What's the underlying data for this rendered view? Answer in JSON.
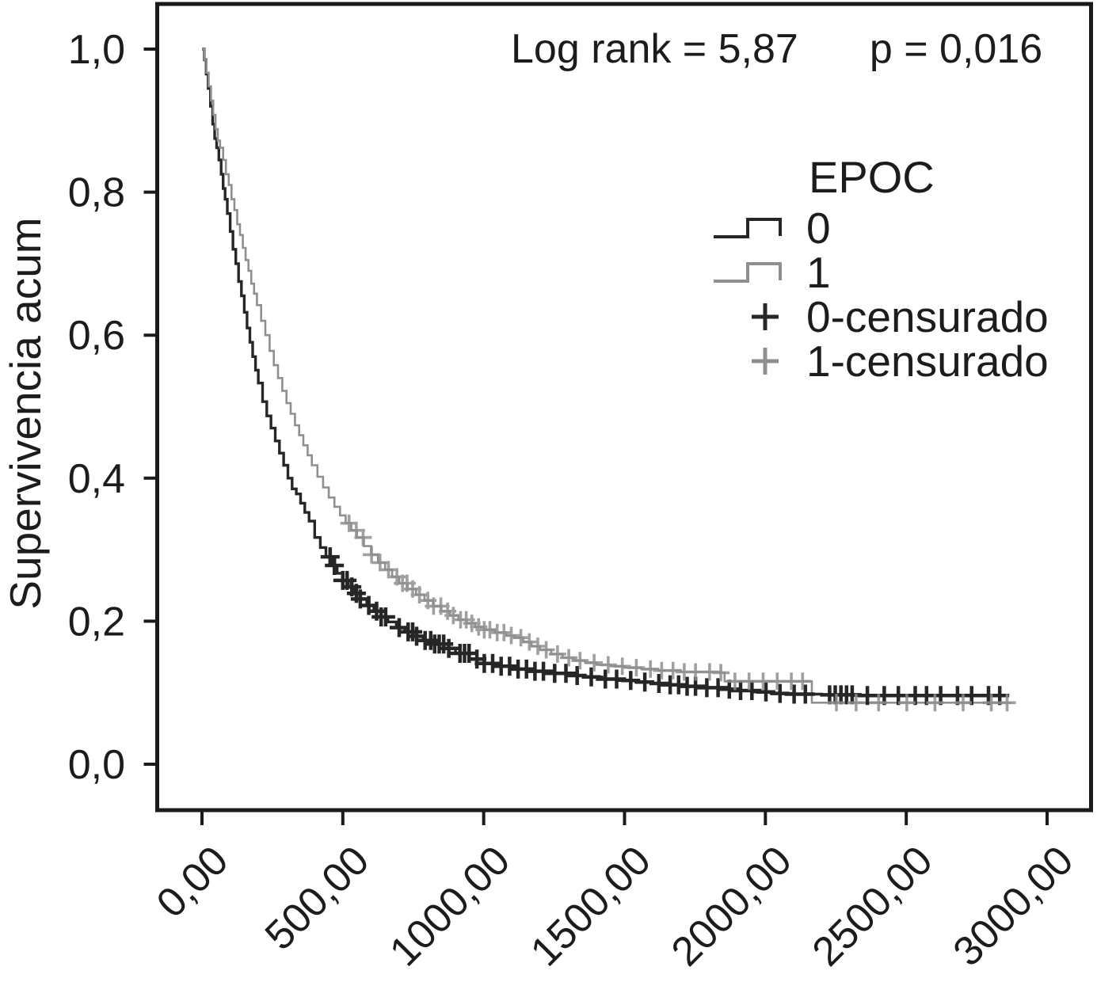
{
  "annotation": {
    "log_rank": "Log rank = 5,87",
    "p_value": "p = 0,016"
  },
  "axes": {
    "y_label": "Supervivencia acum",
    "y_ticks": [
      "0,0",
      "0,2",
      "0,4",
      "0,6",
      "0,8",
      "1,0"
    ],
    "x_ticks": [
      "0,00",
      "500,00",
      "1000,00",
      "1500,00",
      "2000,00",
      "2500,00",
      "3000,00"
    ]
  },
  "legend": {
    "title": "EPOC",
    "items": [
      {
        "label": "0",
        "type": "step-line",
        "color": "#262626"
      },
      {
        "label": "1",
        "type": "step-line",
        "color": "#8f8f8f"
      },
      {
        "label": "0-censurado",
        "type": "plus",
        "color": "#262626"
      },
      {
        "label": "1-censurado",
        "type": "plus",
        "color": "#8f8f8f"
      }
    ]
  },
  "colors": {
    "series0": "#262626",
    "series1": "#8f8f8f",
    "axis": "#1a1a1a",
    "background": "#ffffff",
    "text": "#1c1c1c"
  },
  "chart_data": {
    "type": "line",
    "subtype": "kaplan-meier-step",
    "title": "Log rank = 5,87  p = 0,016",
    "xlabel": "",
    "ylabel": "Supervivencia acum",
    "xlim": [
      0,
      3150
    ],
    "ylim": [
      0.0,
      1.05
    ],
    "x_tick_values": [
      0,
      500,
      1000,
      1500,
      2000,
      2500,
      3000
    ],
    "y_tick_values": [
      0.0,
      0.2,
      0.4,
      0.6,
      0.8,
      1.0
    ],
    "grid": false,
    "legend_position": "upper right",
    "series": [
      {
        "name": "0",
        "label": "EPOC 0",
        "color": "#262626",
        "points": [
          [
            0,
            1.0
          ],
          [
            8,
            0.985
          ],
          [
            15,
            0.965
          ],
          [
            22,
            0.945
          ],
          [
            30,
            0.92
          ],
          [
            38,
            0.895
          ],
          [
            45,
            0.875
          ],
          [
            52,
            0.862
          ],
          [
            60,
            0.845
          ],
          [
            68,
            0.825
          ],
          [
            75,
            0.805
          ],
          [
            82,
            0.79
          ],
          [
            90,
            0.77
          ],
          [
            100,
            0.745
          ],
          [
            110,
            0.72
          ],
          [
            120,
            0.7
          ],
          [
            130,
            0.675
          ],
          [
            140,
            0.655
          ],
          [
            150,
            0.632
          ],
          [
            160,
            0.61
          ],
          [
            170,
            0.59
          ],
          [
            180,
            0.57
          ],
          [
            190,
            0.551
          ],
          [
            200,
            0.533
          ],
          [
            215,
            0.507
          ],
          [
            230,
            0.487
          ],
          [
            245,
            0.47
          ],
          [
            260,
            0.452
          ],
          [
            275,
            0.435
          ],
          [
            290,
            0.418
          ],
          [
            305,
            0.4
          ],
          [
            320,
            0.385
          ],
          [
            335,
            0.378
          ],
          [
            350,
            0.365
          ],
          [
            365,
            0.352
          ],
          [
            380,
            0.34
          ],
          [
            400,
            0.317
          ],
          [
            420,
            0.303
          ],
          [
            440,
            0.29
          ],
          [
            460,
            0.278
          ],
          [
            480,
            0.267
          ],
          [
            500,
            0.257
          ],
          [
            520,
            0.248
          ],
          [
            540,
            0.239
          ],
          [
            560,
            0.231
          ],
          [
            585,
            0.222
          ],
          [
            610,
            0.214
          ],
          [
            635,
            0.206
          ],
          [
            660,
            0.199
          ],
          [
            690,
            0.191
          ],
          [
            720,
            0.185
          ],
          [
            750,
            0.179
          ],
          [
            785,
            0.173
          ],
          [
            820,
            0.168
          ],
          [
            860,
            0.162
          ],
          [
            900,
            0.155
          ],
          [
            950,
            0.147
          ],
          [
            1000,
            0.141
          ],
          [
            1060,
            0.137
          ],
          [
            1120,
            0.133
          ],
          [
            1180,
            0.13
          ],
          [
            1240,
            0.127
          ],
          [
            1300,
            0.124
          ],
          [
            1360,
            0.122
          ],
          [
            1420,
            0.119
          ],
          [
            1480,
            0.117
          ],
          [
            1540,
            0.115
          ],
          [
            1600,
            0.113
          ],
          [
            1660,
            0.111
          ],
          [
            1720,
            0.109
          ],
          [
            1780,
            0.107
          ],
          [
            1840,
            0.105
          ],
          [
            1900,
            0.103
          ],
          [
            1960,
            0.101
          ],
          [
            2020,
            0.099
          ],
          [
            2100,
            0.098
          ],
          [
            2200,
            0.097
          ],
          [
            2320,
            0.096
          ],
          [
            2860,
            0.096
          ]
        ],
        "censored": [
          455,
          470,
          500,
          515,
          532,
          548,
          562,
          592,
          620,
          636,
          652,
          700,
          732,
          748,
          762,
          792,
          812,
          826,
          842,
          858,
          876,
          916,
          932,
          948,
          976,
          1002,
          1032,
          1062,
          1092,
          1122,
          1152,
          1182,
          1212,
          1252,
          1292,
          1332,
          1382,
          1432,
          1472,
          1522,
          1572,
          1622,
          1662,
          1692,
          1722,
          1752,
          1792,
          1832,
          1872,
          1912,
          1952,
          2002,
          2052,
          2102,
          2142,
          2228,
          2248,
          2268,
          2288,
          2308,
          2362,
          2422,
          2472,
          2532,
          2572,
          2622,
          2682,
          2732,
          2792,
          2832
        ]
      },
      {
        "name": "1",
        "label": "EPOC 1",
        "color": "#8f8f8f",
        "points": [
          [
            0,
            1.0
          ],
          [
            8,
            0.985
          ],
          [
            16,
            0.967
          ],
          [
            24,
            0.948
          ],
          [
            32,
            0.928
          ],
          [
            40,
            0.908
          ],
          [
            48,
            0.888
          ],
          [
            56,
            0.872
          ],
          [
            64,
            0.862
          ],
          [
            75,
            0.845
          ],
          [
            85,
            0.825
          ],
          [
            95,
            0.81
          ],
          [
            105,
            0.79
          ],
          [
            115,
            0.775
          ],
          [
            125,
            0.755
          ],
          [
            135,
            0.74
          ],
          [
            145,
            0.722
          ],
          [
            155,
            0.705
          ],
          [
            165,
            0.69
          ],
          [
            175,
            0.672
          ],
          [
            185,
            0.658
          ],
          [
            195,
            0.642
          ],
          [
            210,
            0.62
          ],
          [
            225,
            0.6
          ],
          [
            240,
            0.578
          ],
          [
            255,
            0.558
          ],
          [
            270,
            0.54
          ],
          [
            285,
            0.522
          ],
          [
            300,
            0.505
          ],
          [
            315,
            0.49
          ],
          [
            330,
            0.474
          ],
          [
            345,
            0.46
          ],
          [
            360,
            0.446
          ],
          [
            375,
            0.432
          ],
          [
            390,
            0.418
          ],
          [
            410,
            0.402
          ],
          [
            430,
            0.387
          ],
          [
            450,
            0.373
          ],
          [
            470,
            0.36
          ],
          [
            490,
            0.348
          ],
          [
            510,
            0.337
          ],
          [
            530,
            0.327
          ],
          [
            550,
            0.317
          ],
          [
            575,
            0.305
          ],
          [
            600,
            0.293
          ],
          [
            625,
            0.282
          ],
          [
            650,
            0.272
          ],
          [
            675,
            0.262
          ],
          [
            700,
            0.253
          ],
          [
            730,
            0.245
          ],
          [
            760,
            0.237
          ],
          [
            790,
            0.229
          ],
          [
            820,
            0.221
          ],
          [
            850,
            0.214
          ],
          [
            880,
            0.208
          ],
          [
            910,
            0.202
          ],
          [
            940,
            0.197
          ],
          [
            970,
            0.192
          ],
          [
            1000,
            0.188
          ],
          [
            1040,
            0.184
          ],
          [
            1080,
            0.18
          ],
          [
            1110,
            0.177
          ],
          [
            1140,
            0.171
          ],
          [
            1170,
            0.165
          ],
          [
            1200,
            0.16
          ],
          [
            1240,
            0.154
          ],
          [
            1280,
            0.149
          ],
          [
            1320,
            0.145
          ],
          [
            1360,
            0.142
          ],
          [
            1400,
            0.139
          ],
          [
            1450,
            0.137
          ],
          [
            1500,
            0.135
          ],
          [
            1560,
            0.133
          ],
          [
            1620,
            0.131
          ],
          [
            1700,
            0.129
          ],
          [
            1840,
            0.128
          ],
          [
            1855,
            0.116
          ],
          [
            2150,
            0.116
          ],
          [
            2165,
            0.086
          ],
          [
            2875,
            0.086
          ]
        ],
        "censored": [
          522,
          548,
          572,
          602,
          632,
          662,
          692,
          712,
          728,
          748,
          772,
          802,
          822,
          848,
          872,
          892,
          918,
          938,
          958,
          982,
          1002,
          1022,
          1048,
          1072,
          1098,
          1132,
          1162,
          1192,
          1222,
          1262,
          1302,
          1342,
          1392,
          1442,
          1492,
          1542,
          1592,
          1632,
          1672,
          1712,
          1752,
          1802,
          1842,
          1892,
          1942,
          1992,
          2042,
          2092,
          2132,
          2252,
          2322,
          2402,
          2502,
          2602,
          2702,
          2802,
          2858
        ]
      }
    ]
  }
}
